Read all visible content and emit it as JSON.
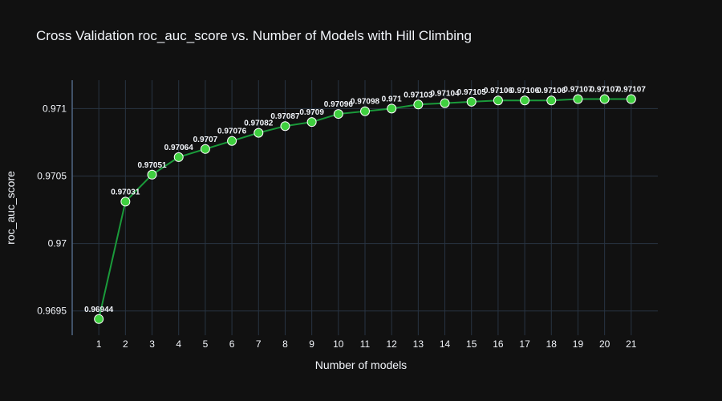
{
  "chart_data": {
    "type": "line",
    "title": "Cross Validation roc_auc_score vs. Number of Models with Hill Climbing",
    "xlabel": "Number of models",
    "ylabel": "roc_auc_score",
    "x": [
      1,
      2,
      3,
      4,
      5,
      6,
      7,
      8,
      9,
      10,
      11,
      12,
      13,
      14,
      15,
      16,
      17,
      18,
      19,
      20,
      21
    ],
    "series": [
      {
        "values": [
          0.96944,
          0.97031,
          0.97051,
          0.97064,
          0.9707,
          0.97076,
          0.97082,
          0.97087,
          0.9709,
          0.97096,
          0.97098,
          0.971,
          0.97103,
          0.97104,
          0.97105,
          0.97106,
          0.97106,
          0.97106,
          0.97107,
          0.97107,
          0.97107
        ],
        "labels": [
          "0.96944",
          "0.97031",
          "0.97051",
          "0.97064",
          "0.9707",
          "0.97076",
          "0.97082",
          "0.97087",
          "0.9709",
          "0.97096",
          "0.97098",
          "0.971",
          "0.97103",
          "0.97104",
          "0.97105",
          "0.97106",
          "0.97106",
          "0.97106",
          "0.97107",
          "0.97107",
          "0.97107"
        ]
      }
    ],
    "xlim": [
      0,
      22
    ],
    "ylim": [
      0.96932,
      0.97121
    ],
    "y_ticks": [
      0.9695,
      0.97,
      0.9705,
      0.971
    ],
    "y_tick_labels": [
      "0.9695",
      "0.97",
      "0.9705",
      "0.971"
    ],
    "grid": true,
    "colors": {
      "background": "#111111",
      "grid": "#283442",
      "line": "#1a9a3a",
      "marker": "#3fcf3f",
      "marker_edge": "#ffffff",
      "text": "#f2f5fa"
    }
  }
}
